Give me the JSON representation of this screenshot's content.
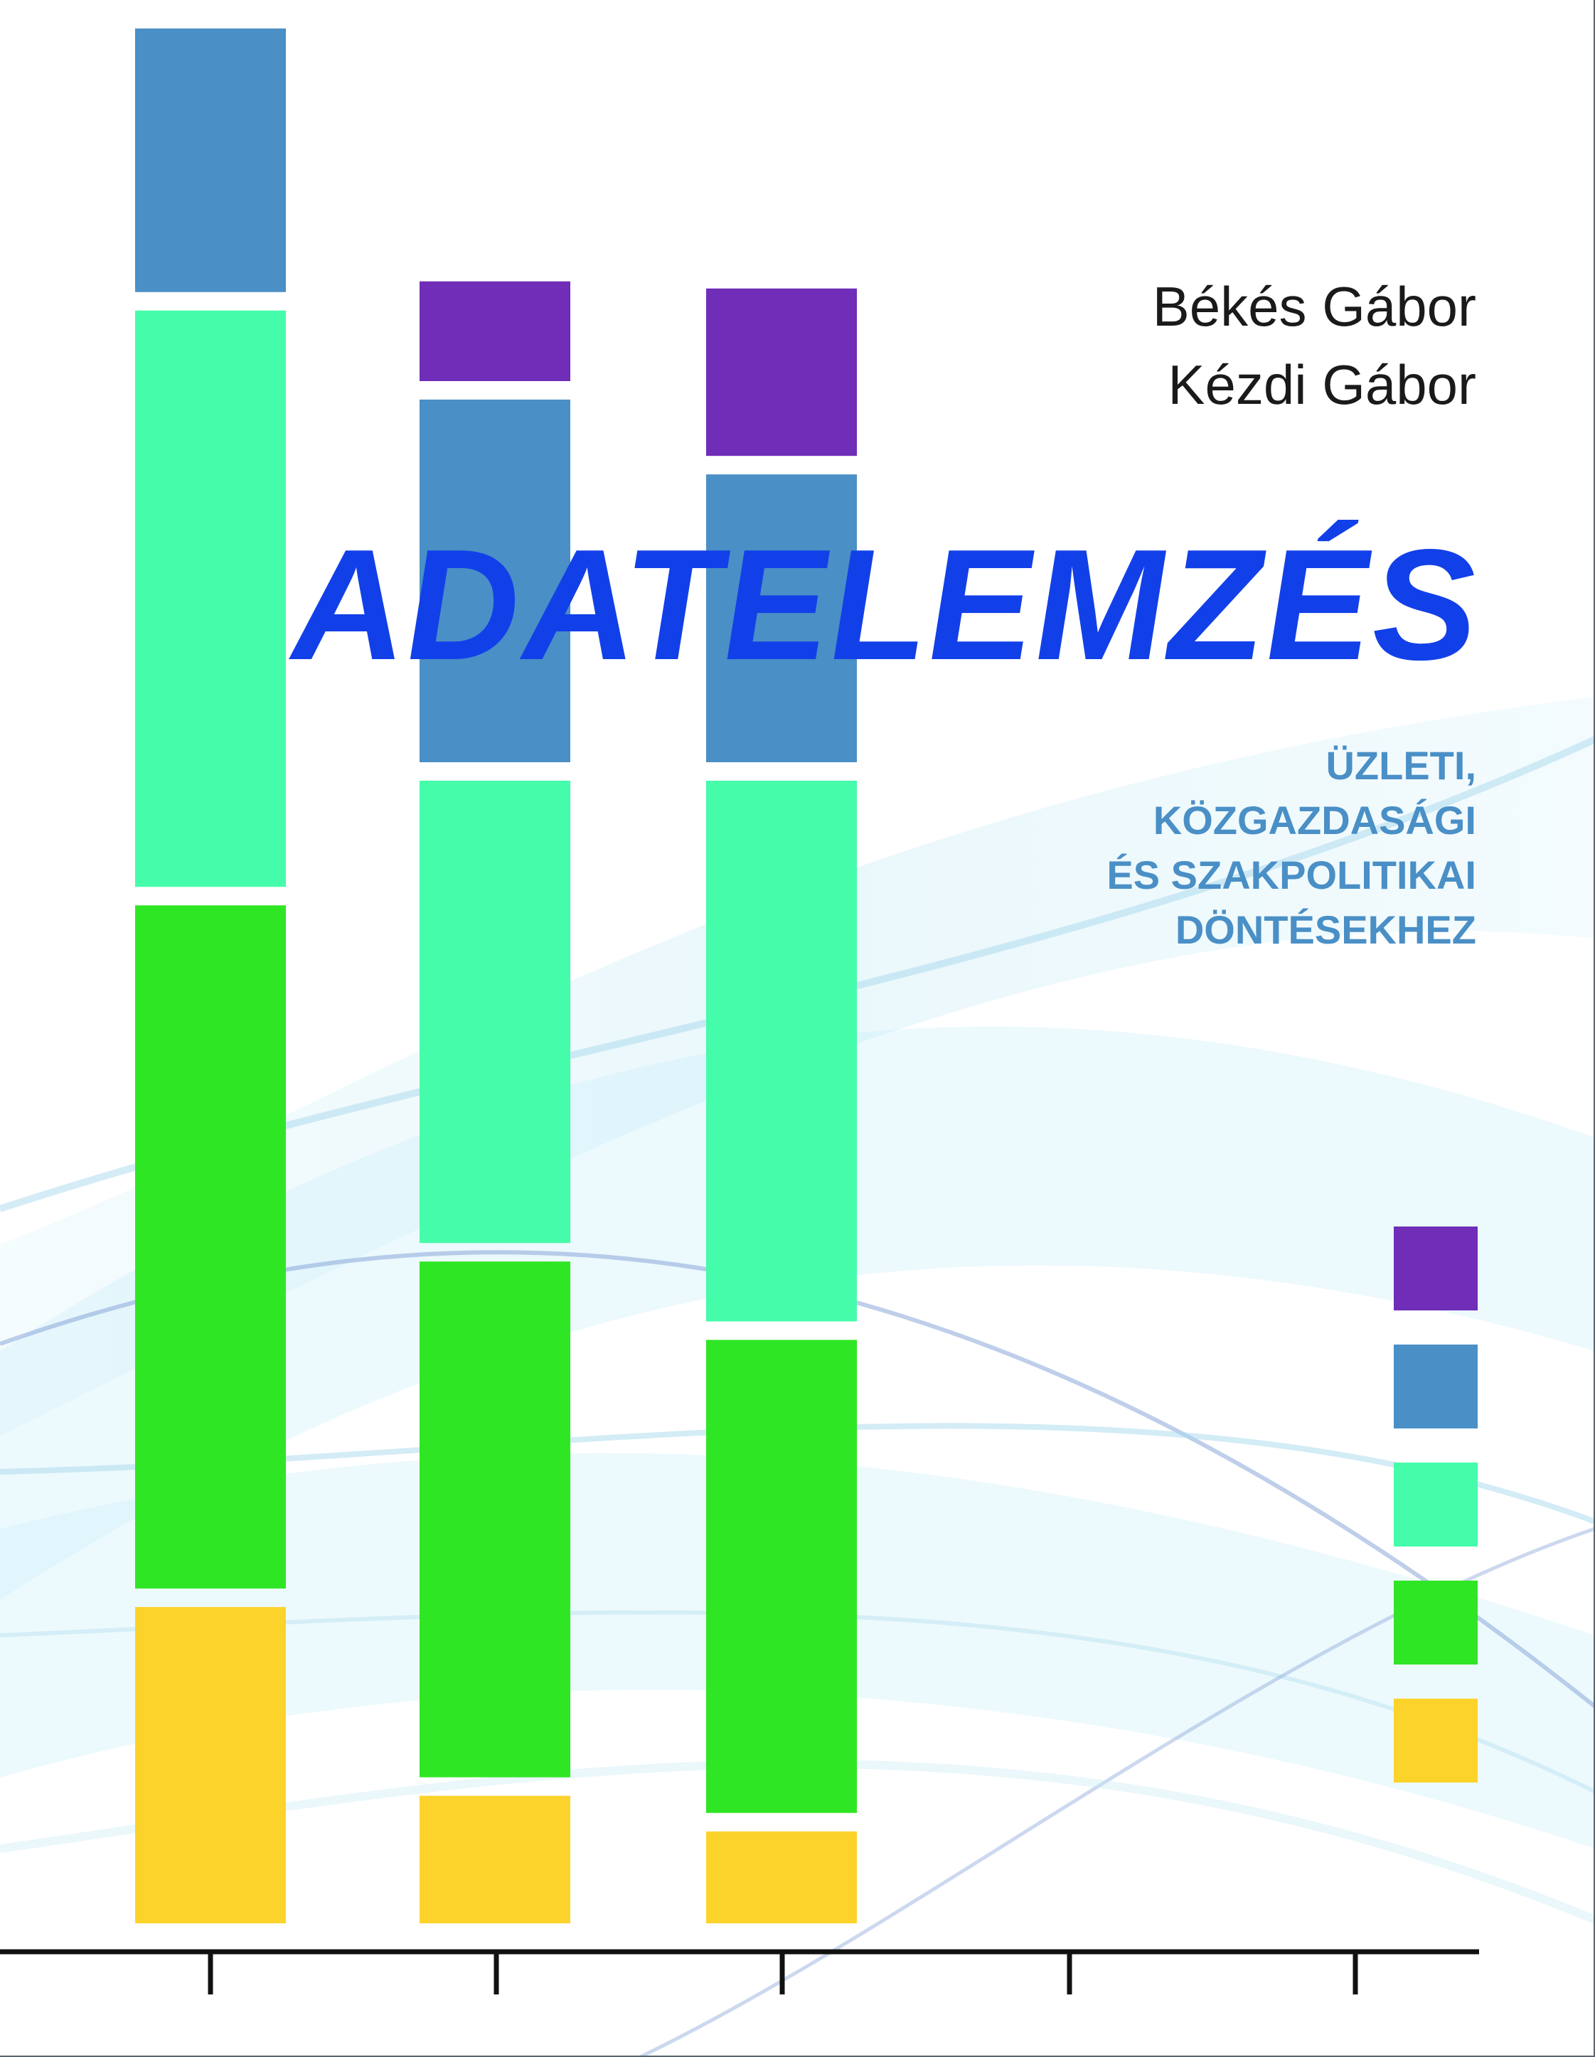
{
  "authors": [
    "Békés Gábor",
    "Kézdi Gábor"
  ],
  "title": "ADATELEMZÉS",
  "subtitle_lines": [
    "ÜZLETI,",
    "KÖZGAZDASÁGI",
    "ÉS SZAKPOLITIKAI",
    "DÖNTÉSEKHEZ"
  ],
  "colors": {
    "title": "#1240e8",
    "subtitle": "#4a8fc6",
    "author": "#1a1a1a",
    "axis": "#111111",
    "purple": "#6f2db8",
    "blue": "#4a8fc6",
    "teal": "#45fcaa",
    "green": "#2fe625",
    "yellow": "#fcd32b"
  },
  "chart_data": {
    "type": "bar",
    "stacked": true,
    "categories": [
      "",
      "",
      ""
    ],
    "series": [
      {
        "color": "yellow",
        "values": [
          470,
          205,
          155
        ]
      },
      {
        "color": "green",
        "values": [
          985,
          750,
          690
        ]
      },
      {
        "color": "teal",
        "values": [
          835,
          675,
          785
        ]
      },
      {
        "color": "blue",
        "values": [
          370,
          535,
          430
        ]
      },
      {
        "color": "purple",
        "values": [
          0,
          140,
          235
        ]
      }
    ],
    "ylim": [
      0,
      2700
    ],
    "x_ticks": 5,
    "legend_placement": "right",
    "legend": [
      {
        "color": "purple"
      },
      {
        "color": "blue"
      },
      {
        "color": "teal"
      },
      {
        "color": "green"
      },
      {
        "color": "yellow"
      }
    ]
  }
}
